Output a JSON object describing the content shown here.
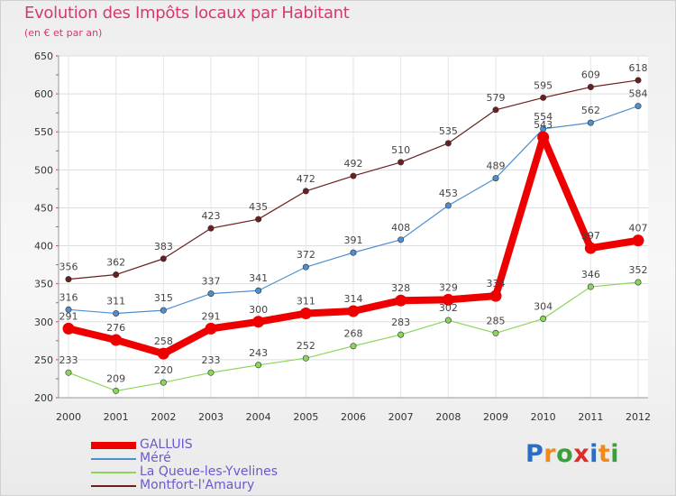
{
  "header": {
    "title": "Evolution des Impôts locaux par Habitant",
    "subtitle": "(en € et par an)"
  },
  "brand": {
    "letters": [
      "P",
      "r",
      "o",
      "x",
      "i",
      "t",
      "i"
    ]
  },
  "chart_data": {
    "type": "line",
    "title": "Evolution des Impôts locaux par Habitant",
    "subtitle": "(en € et par an)",
    "x": [
      2000,
      2001,
      2002,
      2003,
      2004,
      2005,
      2006,
      2007,
      2008,
      2009,
      2010,
      2011,
      2012
    ],
    "ylim": [
      200,
      650
    ],
    "yticks": [
      200,
      250,
      300,
      350,
      400,
      450,
      500,
      550,
      600,
      650
    ],
    "grid": true,
    "legend_position": "bottom-left",
    "series": [
      {
        "name": "GALLUIS",
        "color": "#ee0000",
        "values": [
          291,
          276,
          258,
          291,
          300,
          311,
          314,
          328,
          329,
          334,
          543,
          397,
          407
        ]
      },
      {
        "name": "Méré",
        "color": "#4d8fcf",
        "values": [
          316,
          311,
          315,
          337,
          341,
          372,
          391,
          408,
          453,
          489,
          554,
          562,
          584
        ]
      },
      {
        "name": "La Queue-les-Yvelines",
        "color": "#8bd65a",
        "values": [
          233,
          209,
          220,
          233,
          243,
          252,
          268,
          283,
          302,
          285,
          304,
          346,
          352
        ]
      },
      {
        "name": "Montfort-l'Amaury",
        "color": "#6b1f1f",
        "values": [
          356,
          362,
          383,
          423,
          435,
          472,
          492,
          510,
          535,
          579,
          595,
          609,
          618
        ]
      }
    ]
  }
}
